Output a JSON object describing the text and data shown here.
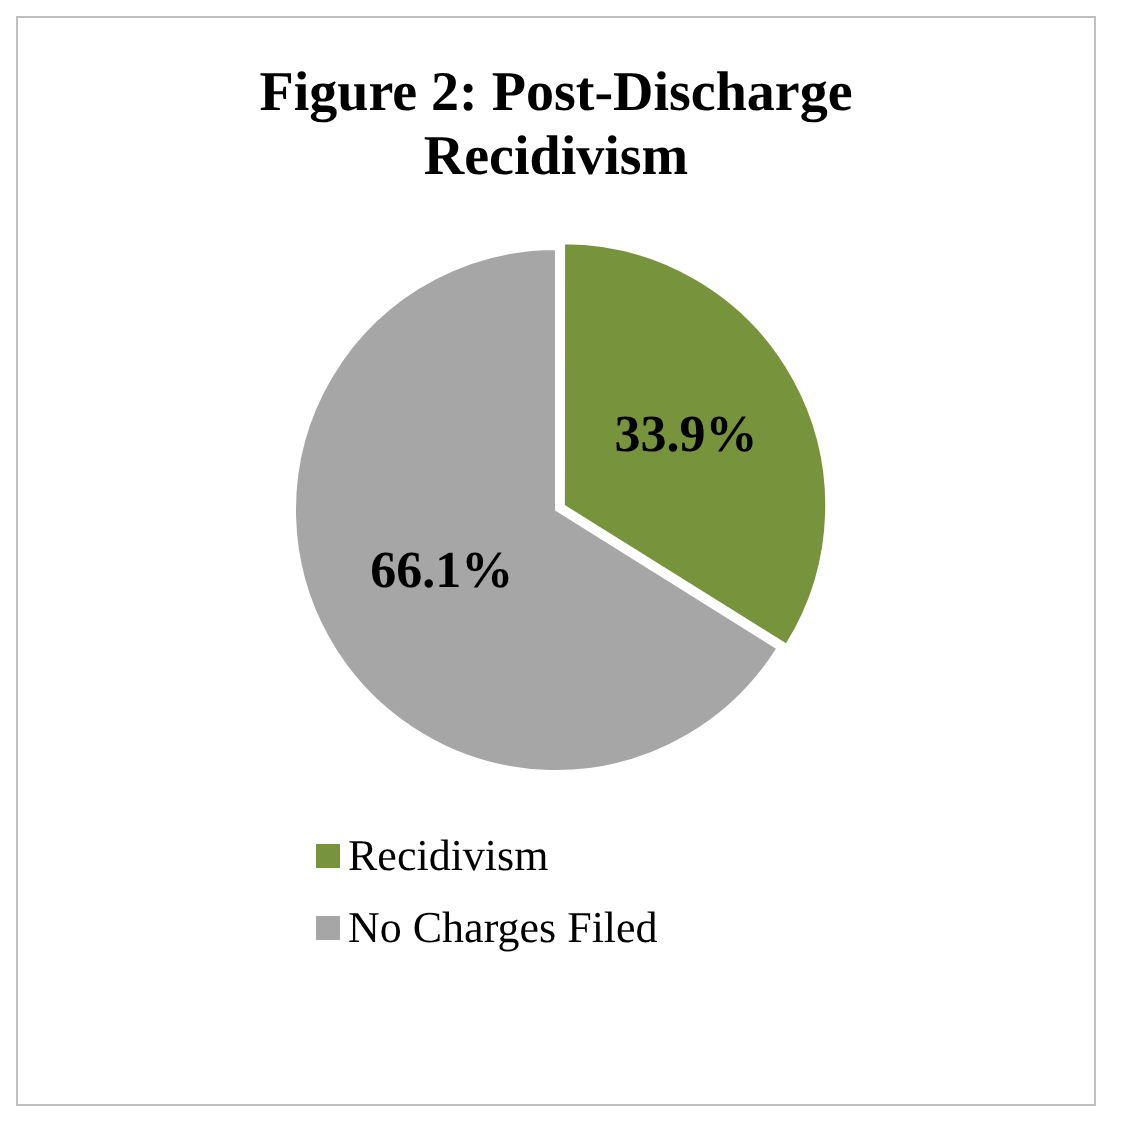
{
  "chart_data": {
    "type": "pie",
    "title": "Figure 2: Post-Discharge Recidivism",
    "categories": [
      "Recidivism",
      "No Charges Filed"
    ],
    "values": [
      33.9,
      66.1
    ],
    "colors": [
      "#77933c",
      "#a6a6a6"
    ],
    "value_labels": [
      "33.9%",
      "66.1%"
    ],
    "legend": "bottom"
  }
}
